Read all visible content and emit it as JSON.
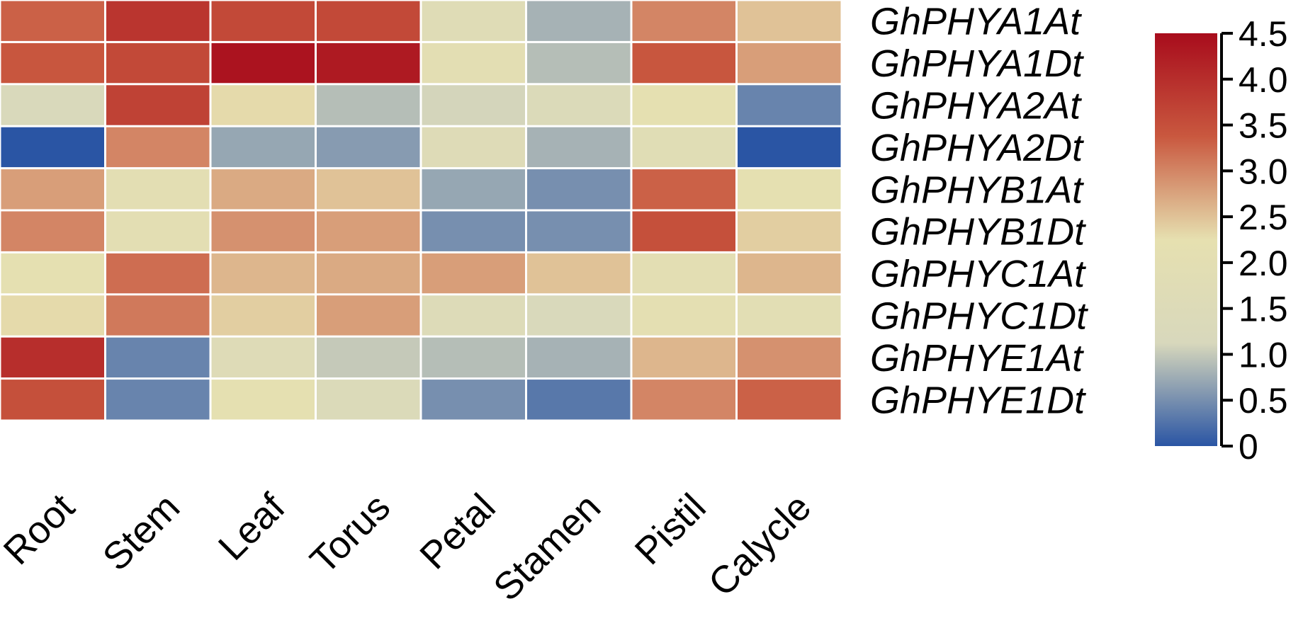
{
  "chart_data": {
    "type": "heatmap",
    "title": "",
    "xlabel": "",
    "ylabel": "",
    "columns": [
      "Root",
      "Stem",
      "Leaf",
      "Torus",
      "Petal",
      "Stamen",
      "Pistil",
      "Calycle"
    ],
    "rows": [
      "GhPHYA1At",
      "GhPHYA1Dt",
      "GhPHYA2At",
      "GhPHYA2Dt",
      "GhPHYB1At",
      "GhPHYB1Dt",
      "GhPHYC1At",
      "GhPHYC1Dt",
      "GhPHYE1At",
      "GhPHYE1Dt"
    ],
    "values": [
      [
        3.3,
        3.9,
        3.6,
        3.6,
        1.7,
        0.8,
        3.0,
        2.5
      ],
      [
        3.4,
        3.6,
        4.4,
        4.3,
        2.0,
        0.9,
        3.4,
        2.8
      ],
      [
        1.2,
        3.7,
        2.3,
        0.9,
        1.1,
        1.4,
        2.2,
        0.4
      ],
      [
        0.0,
        3.0,
        0.7,
        0.6,
        1.6,
        0.8,
        1.8,
        0.0
      ],
      [
        2.8,
        2.0,
        2.7,
        2.5,
        0.7,
        0.5,
        3.3,
        2.2
      ],
      [
        3.0,
        2.0,
        2.9,
        2.8,
        0.5,
        0.5,
        3.5,
        2.4
      ],
      [
        2.2,
        3.2,
        2.6,
        2.7,
        2.8,
        2.5,
        2.0,
        2.6
      ],
      [
        2.3,
        3.1,
        2.4,
        2.8,
        1.5,
        1.2,
        2.1,
        1.9
      ],
      [
        4.0,
        0.4,
        1.6,
        1.0,
        0.9,
        0.8,
        2.6,
        2.9
      ],
      [
        3.5,
        0.4,
        2.2,
        1.4,
        0.5,
        0.3,
        3.0,
        3.3
      ]
    ],
    "colorbar": {
      "min": 0,
      "max": 4.5,
      "ticks": [
        "0",
        "0.5",
        "1.0",
        "1.5",
        "2.0",
        "2.5",
        "3.0",
        "3.5",
        "4.0",
        "4.5"
      ],
      "colors": [
        "#2a55a4",
        "#d8d8bc",
        "#e6e0b0",
        "#c9583f",
        "#a80c1c"
      ]
    }
  }
}
